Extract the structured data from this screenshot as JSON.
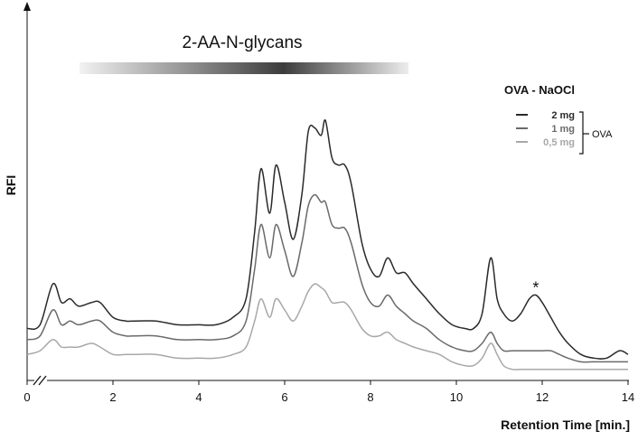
{
  "chart_data": {
    "type": "line",
    "title": "",
    "band_label": "2-AA-N-glycans",
    "xlabel": "Retention Time [min.]",
    "ylabel": "RFI",
    "xlim": [
      0,
      14
    ],
    "ylim": [
      0,
      100
    ],
    "x_ticks": [
      "0",
      "2",
      "4",
      "6",
      "8",
      "10",
      "12",
      "14"
    ],
    "grid": false,
    "legend": {
      "title": "OVA - NaOCl",
      "group_label": "OVA",
      "placement": "top-right"
    },
    "annotation": {
      "text": "*",
      "x": 11.85
    },
    "series": [
      {
        "name": "2 mg",
        "color": "#2a2a2a",
        "points": [
          [
            0,
            14
          ],
          [
            0.3,
            15
          ],
          [
            0.6,
            26
          ],
          [
            0.8,
            21
          ],
          [
            1.0,
            22
          ],
          [
            1.2,
            20
          ],
          [
            1.5,
            21
          ],
          [
            1.7,
            21
          ],
          [
            2.0,
            17
          ],
          [
            2.3,
            16
          ],
          [
            2.5,
            16
          ],
          [
            3.0,
            16
          ],
          [
            3.5,
            15
          ],
          [
            4.0,
            15
          ],
          [
            4.4,
            15
          ],
          [
            4.8,
            17
          ],
          [
            5.1,
            22
          ],
          [
            5.3,
            40
          ],
          [
            5.45,
            57
          ],
          [
            5.65,
            45
          ],
          [
            5.8,
            58
          ],
          [
            6.0,
            48
          ],
          [
            6.2,
            38
          ],
          [
            6.4,
            50
          ],
          [
            6.55,
            67
          ],
          [
            6.7,
            68
          ],
          [
            6.85,
            66
          ],
          [
            6.95,
            70
          ],
          [
            7.1,
            60
          ],
          [
            7.25,
            58
          ],
          [
            7.4,
            58
          ],
          [
            7.55,
            53
          ],
          [
            7.8,
            37
          ],
          [
            8.0,
            30
          ],
          [
            8.2,
            28
          ],
          [
            8.4,
            33
          ],
          [
            8.6,
            29
          ],
          [
            8.8,
            29
          ],
          [
            9.0,
            26
          ],
          [
            9.3,
            22
          ],
          [
            9.6,
            18
          ],
          [
            9.9,
            15
          ],
          [
            10.2,
            14
          ],
          [
            10.4,
            14
          ],
          [
            10.6,
            18
          ],
          [
            10.8,
            33
          ],
          [
            10.95,
            22
          ],
          [
            11.1,
            18
          ],
          [
            11.3,
            16
          ],
          [
            11.5,
            18
          ],
          [
            11.7,
            22
          ],
          [
            11.85,
            23
          ],
          [
            12.0,
            21
          ],
          [
            12.2,
            17
          ],
          [
            12.4,
            13
          ],
          [
            12.6,
            10
          ],
          [
            12.9,
            7
          ],
          [
            13.2,
            6
          ],
          [
            13.5,
            6
          ],
          [
            13.8,
            8
          ],
          [
            14,
            7
          ]
        ]
      },
      {
        "name": "1 mg",
        "color": "#6a6a6a",
        "points": [
          [
            0,
            11
          ],
          [
            0.3,
            12
          ],
          [
            0.6,
            19
          ],
          [
            0.8,
            15
          ],
          [
            1.0,
            16
          ],
          [
            1.2,
            15
          ],
          [
            1.5,
            16
          ],
          [
            1.7,
            16
          ],
          [
            2.0,
            13
          ],
          [
            2.3,
            12
          ],
          [
            2.5,
            12
          ],
          [
            3.0,
            12
          ],
          [
            3.5,
            11
          ],
          [
            4.0,
            11
          ],
          [
            4.4,
            11
          ],
          [
            4.8,
            12
          ],
          [
            5.1,
            16
          ],
          [
            5.3,
            30
          ],
          [
            5.45,
            42
          ],
          [
            5.65,
            33
          ],
          [
            5.8,
            42
          ],
          [
            6.0,
            35
          ],
          [
            6.2,
            28
          ],
          [
            6.4,
            37
          ],
          [
            6.55,
            47
          ],
          [
            6.7,
            50
          ],
          [
            6.85,
            48
          ],
          [
            6.95,
            48
          ],
          [
            7.1,
            42
          ],
          [
            7.25,
            41
          ],
          [
            7.4,
            41
          ],
          [
            7.55,
            37
          ],
          [
            7.8,
            26
          ],
          [
            8.0,
            21
          ],
          [
            8.2,
            20
          ],
          [
            8.4,
            23
          ],
          [
            8.6,
            20
          ],
          [
            8.8,
            18
          ],
          [
            9.0,
            16
          ],
          [
            9.3,
            14
          ],
          [
            9.6,
            11
          ],
          [
            9.9,
            9
          ],
          [
            10.2,
            8
          ],
          [
            10.4,
            8
          ],
          [
            10.6,
            10
          ],
          [
            10.8,
            13
          ],
          [
            10.95,
            10
          ],
          [
            11.1,
            8
          ],
          [
            11.3,
            8
          ],
          [
            11.5,
            8
          ],
          [
            11.7,
            8
          ],
          [
            11.85,
            8
          ],
          [
            12.0,
            8
          ],
          [
            12.2,
            8
          ],
          [
            12.4,
            7
          ],
          [
            12.6,
            6
          ],
          [
            12.9,
            5
          ],
          [
            13.2,
            5
          ],
          [
            13.5,
            5
          ],
          [
            13.8,
            5
          ],
          [
            14,
            5
          ]
        ]
      },
      {
        "name": "0,5 mg",
        "color": "#a8a8a8",
        "points": [
          [
            0,
            7
          ],
          [
            0.3,
            8
          ],
          [
            0.6,
            11
          ],
          [
            0.8,
            9
          ],
          [
            1.0,
            9
          ],
          [
            1.2,
            9
          ],
          [
            1.5,
            10
          ],
          [
            1.7,
            9
          ],
          [
            2.0,
            7
          ],
          [
            2.3,
            7
          ],
          [
            2.5,
            7
          ],
          [
            3.0,
            7
          ],
          [
            3.5,
            6
          ],
          [
            4.0,
            6
          ],
          [
            4.4,
            6
          ],
          [
            4.8,
            7
          ],
          [
            5.1,
            9
          ],
          [
            5.3,
            16
          ],
          [
            5.45,
            22
          ],
          [
            5.65,
            17
          ],
          [
            5.8,
            22
          ],
          [
            6.0,
            19
          ],
          [
            6.2,
            16
          ],
          [
            6.4,
            20
          ],
          [
            6.55,
            24
          ],
          [
            6.7,
            26
          ],
          [
            6.85,
            25
          ],
          [
            6.95,
            24
          ],
          [
            7.1,
            21
          ],
          [
            7.25,
            21
          ],
          [
            7.4,
            21
          ],
          [
            7.55,
            19
          ],
          [
            7.8,
            14
          ],
          [
            8.0,
            12
          ],
          [
            8.2,
            12
          ],
          [
            8.4,
            13
          ],
          [
            8.6,
            11
          ],
          [
            8.8,
            10
          ],
          [
            9.0,
            9
          ],
          [
            9.3,
            8
          ],
          [
            9.6,
            7
          ],
          [
            9.9,
            5
          ],
          [
            10.2,
            4
          ],
          [
            10.4,
            4
          ],
          [
            10.6,
            6
          ],
          [
            10.8,
            10
          ],
          [
            10.95,
            7
          ],
          [
            11.1,
            4
          ],
          [
            11.3,
            3
          ],
          [
            11.5,
            3
          ],
          [
            11.7,
            3
          ],
          [
            11.85,
            3
          ],
          [
            12.0,
            3
          ],
          [
            12.2,
            3
          ],
          [
            12.4,
            3
          ],
          [
            12.6,
            3
          ],
          [
            12.9,
            3
          ],
          [
            13.2,
            3
          ],
          [
            13.5,
            3
          ],
          [
            13.8,
            3
          ],
          [
            14,
            3
          ]
        ]
      }
    ]
  }
}
